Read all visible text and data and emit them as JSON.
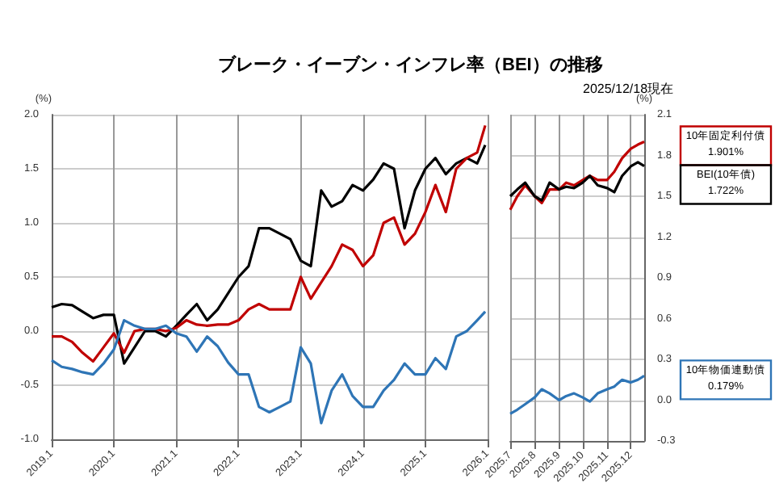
{
  "chart_data": [
    {
      "type": "line",
      "title": "ブレーク・イーブン・インフレ率（BEI）の推移",
      "ylabel": "(%)",
      "x": [
        "2019-01",
        "2019-03",
        "2019-05",
        "2019-07",
        "2019-09",
        "2019-11",
        "2020-01",
        "2020-03",
        "2020-05",
        "2020-07",
        "2020-09",
        "2020-11",
        "2021-01",
        "2021-03",
        "2021-05",
        "2021-07",
        "2021-09",
        "2021-11",
        "2022-01",
        "2022-03",
        "2022-05",
        "2022-07",
        "2022-09",
        "2022-11",
        "2023-01",
        "2023-03",
        "2023-05",
        "2023-07",
        "2023-09",
        "2023-11",
        "2024-01",
        "2024-03",
        "2024-05",
        "2024-07",
        "2024-09",
        "2024-11",
        "2025-01",
        "2025-03",
        "2025-05",
        "2025-07",
        "2025-09",
        "2025-11",
        "2025-12-18"
      ],
      "series": [
        {
          "color": "#000000",
          "values": [
            0.22,
            0.25,
            0.24,
            0.18,
            0.12,
            0.15,
            0.15,
            -0.3,
            -0.15,
            0.0,
            0.0,
            -0.05,
            0.05,
            0.15,
            0.25,
            0.1,
            0.2,
            0.35,
            0.5,
            0.6,
            0.95,
            0.95,
            0.9,
            0.85,
            0.65,
            0.6,
            1.3,
            1.15,
            1.2,
            1.35,
            1.3,
            1.4,
            1.55,
            1.5,
            0.95,
            1.3,
            1.5,
            1.6,
            1.45,
            1.55,
            1.6,
            1.55,
            1.72
          ]
        },
        {
          "color": "#c00000",
          "values": [
            -0.05,
            -0.05,
            -0.1,
            -0.2,
            -0.28,
            -0.15,
            -0.02,
            -0.2,
            0.0,
            0.02,
            0.02,
            0.0,
            0.03,
            0.1,
            0.06,
            0.05,
            0.06,
            0.06,
            0.1,
            0.2,
            0.25,
            0.2,
            0.2,
            0.2,
            0.5,
            0.3,
            0.45,
            0.6,
            0.8,
            0.75,
            0.6,
            0.7,
            1.0,
            1.05,
            0.8,
            0.9,
            1.1,
            1.35,
            1.1,
            1.5,
            1.6,
            1.65,
            1.9
          ]
        },
        {
          "color": "#2e75b6",
          "values": [
            -0.27,
            -0.33,
            -0.35,
            -0.38,
            -0.4,
            -0.3,
            -0.17,
            0.1,
            0.05,
            0.02,
            0.02,
            0.05,
            -0.02,
            -0.05,
            -0.19,
            -0.05,
            -0.14,
            -0.29,
            -0.4,
            -0.4,
            -0.7,
            -0.75,
            -0.7,
            -0.65,
            -0.15,
            -0.3,
            -0.85,
            -0.55,
            -0.4,
            -0.6,
            -0.7,
            -0.7,
            -0.55,
            -0.45,
            -0.3,
            -0.4,
            -0.4,
            -0.25,
            -0.35,
            -0.05,
            0.0,
            0.1,
            0.18
          ]
        }
      ],
      "xlim": [
        "2019-01",
        "2026-01"
      ],
      "xticks": [
        {
          "value": "2019-01",
          "label": "2019.1"
        },
        {
          "value": "2020-01",
          "label": "2020.1"
        },
        {
          "value": "2021-01",
          "label": "2021.1"
        },
        {
          "value": "2022-01",
          "label": "2022.1"
        },
        {
          "value": "2023-01",
          "label": "2023.1"
        },
        {
          "value": "2024-01",
          "label": "2024.1"
        },
        {
          "value": "2025-01",
          "label": "2025.1"
        },
        {
          "value": "2026-01",
          "label": "2026.1"
        }
      ],
      "ylim": [
        -1.0,
        2.0
      ],
      "yticks": [
        {
          "value": -1.0,
          "label": "-1.0"
        },
        {
          "value": -0.5,
          "label": "-0.5"
        },
        {
          "value": 0,
          "label": "0.0"
        },
        {
          "value": 0.5,
          "label": "0.5"
        },
        {
          "value": 1.0,
          "label": "1.0"
        },
        {
          "value": 1.5,
          "label": "1.5"
        },
        {
          "value": 2.0,
          "label": "2.0"
        }
      ],
      "grid": true
    },
    {
      "type": "line",
      "subtitle": "2025/12/18現在",
      "ylabel": "(%)",
      "legend": "right",
      "annotations": [
        "1.901%",
        "1.722%",
        "0.179%"
      ],
      "x": [
        "2025-07-01",
        "2025-07-10",
        "2025-07-20",
        "2025-08-01",
        "2025-08-10",
        "2025-08-20",
        "2025-09-01",
        "2025-09-10",
        "2025-09-20",
        "2025-10-01",
        "2025-10-10",
        "2025-10-20",
        "2025-11-01",
        "2025-11-10",
        "2025-11-20",
        "2025-12-01",
        "2025-12-10",
        "2025-12-18"
      ],
      "series": [
        {
          "name": "10年固定利付債",
          "color": "#c00000",
          "values": [
            1.4,
            1.5,
            1.58,
            1.5,
            1.45,
            1.55,
            1.55,
            1.6,
            1.58,
            1.62,
            1.65,
            1.62,
            1.62,
            1.68,
            1.78,
            1.85,
            1.88,
            1.901
          ]
        },
        {
          "name": "BEI(10年債)",
          "color": "#000000",
          "values": [
            1.5,
            1.55,
            1.6,
            1.5,
            1.47,
            1.6,
            1.55,
            1.57,
            1.56,
            1.6,
            1.65,
            1.58,
            1.56,
            1.53,
            1.65,
            1.72,
            1.75,
            1.722
          ]
        },
        {
          "name": "10年物価連動債",
          "color": "#2e75b6",
          "values": [
            -0.1,
            -0.07,
            -0.03,
            0.02,
            0.08,
            0.05,
            0.0,
            0.03,
            0.05,
            0.02,
            -0.01,
            0.05,
            0.08,
            0.1,
            0.15,
            0.13,
            0.15,
            0.179
          ]
        }
      ],
      "xlim": [
        "2025-07-01",
        "2025-12-18"
      ],
      "xticks": [
        {
          "value": "2025-07-01",
          "label": "2025.7"
        },
        {
          "value": "2025-08-01",
          "label": "2025.8"
        },
        {
          "value": "2025-09-01",
          "label": "2025.9"
        },
        {
          "value": "2025-10-01",
          "label": "2025.10"
        },
        {
          "value": "2025-11-01",
          "label": "2025.11"
        },
        {
          "value": "2025-12-01",
          "label": "2025.12"
        }
      ],
      "ylim": [
        -0.3,
        2.1
      ],
      "yticks": [
        {
          "value": -0.3,
          "label": "-0.3"
        },
        {
          "value": 0,
          "label": "0.0"
        },
        {
          "value": 0.3,
          "label": "0.3"
        },
        {
          "value": 0.6,
          "label": "0.6"
        },
        {
          "value": 0.9,
          "label": "0.9"
        },
        {
          "value": 1.2,
          "label": "1.2"
        },
        {
          "value": 1.5,
          "label": "1.5"
        },
        {
          "value": 1.8,
          "label": "1.8"
        },
        {
          "value": 2.1,
          "label": "2.1"
        }
      ],
      "grid": true
    }
  ]
}
